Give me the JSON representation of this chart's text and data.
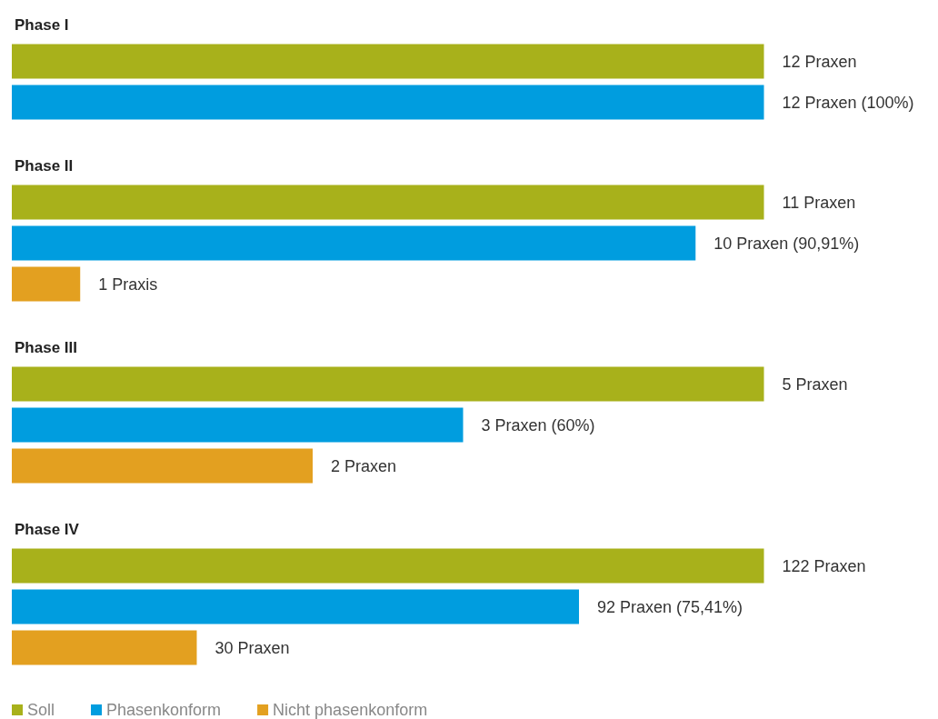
{
  "chart_data": [
    {
      "type": "bar",
      "orientation": "horizontal",
      "title": "Phase I",
      "categories": [
        null,
        null
      ],
      "tick_labels": false,
      "grid": false,
      "legend": false,
      "values": [
        12,
        12
      ],
      "colors": [
        "#a8b11b",
        "#009ddf"
      ],
      "value_labels": [
        "12 Praxen",
        "12 Praxen (100%)"
      ]
    },
    {
      "type": "bar",
      "orientation": "horizontal",
      "title": "Phase II",
      "categories": [
        null,
        null,
        null
      ],
      "tick_labels": false,
      "grid": false,
      "legend": false,
      "values": [
        11,
        10,
        1
      ],
      "colors": [
        "#a8b11b",
        "#009ddf",
        "#e3a020"
      ],
      "value_labels": [
        "11 Praxen",
        "10 Praxen (90,91%)",
        "1 Praxis"
      ]
    },
    {
      "type": "bar",
      "orientation": "horizontal",
      "title": "Phase III",
      "categories": [
        null,
        null,
        null
      ],
      "tick_labels": false,
      "grid": false,
      "legend": false,
      "values": [
        5,
        3,
        2
      ],
      "colors": [
        "#a8b11b",
        "#009ddf",
        "#e3a020"
      ],
      "value_labels": [
        "5 Praxen",
        "3 Praxen (60%)",
        "2 Praxen"
      ]
    },
    {
      "type": "bar",
      "orientation": "horizontal",
      "title": "Phase IV",
      "categories": [
        null,
        null,
        null
      ],
      "tick_labels": false,
      "grid": false,
      "legend": "bottom left",
      "stacked": true,
      "series": [
        {
          "name": "Soll",
          "color": "#a8b11b",
          "values": [
            122,
            null,
            null
          ],
          "value_labels": [
            "122 Praxen",
            null,
            null
          ]
        },
        {
          "name": "Phasenkonform",
          "color": "#009ddf",
          "values": [
            null,
            92,
            null
          ],
          "value_labels": [
            null,
            "92 Praxen (75,41%)",
            null
          ]
        },
        {
          "name": "Nicht phasenkonform",
          "color": "#e3a020",
          "values": [
            null,
            null,
            30
          ],
          "value_labels": [
            null,
            null,
            "30 Praxen"
          ]
        }
      ]
    }
  ]
}
